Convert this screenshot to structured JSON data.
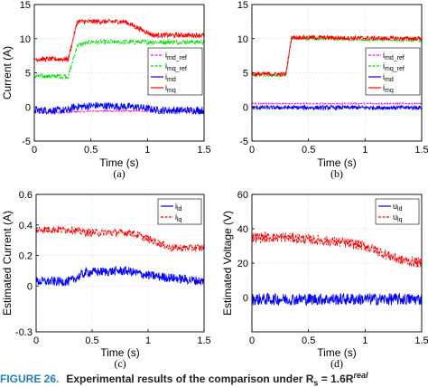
{
  "figure": {
    "caption_label": "FIGURE 26.",
    "caption_text": "Experimental results of the comparison under R",
    "caption_subscript": "s",
    "caption_suffix": " = 1.6R",
    "caption_superscript": "real"
  },
  "colors": {
    "blue": "#0000ff",
    "red": "#ff0000",
    "green": "#00dd00",
    "magenta": "#ff00ff",
    "red_dashed": "#ff0000"
  },
  "chart_data": [
    {
      "type": "line",
      "panel_label": "(a)",
      "xlabel": "Time (s)",
      "ylabel": "Current (A)",
      "xlim": [
        0,
        1.5
      ],
      "ylim": [
        -5,
        15
      ],
      "xticks": [
        "0",
        "0.5",
        "1",
        "1.5"
      ],
      "yticks": [
        "-5",
        "0",
        "5",
        "10",
        "15"
      ],
      "grid": true,
      "legend_position": "right",
      "series": [
        {
          "name": "i_md_ref",
          "name_main": "i",
          "name_sub": "md_ref",
          "style": "dashed",
          "color": "#ff00ff",
          "x": [
            0,
            0.3,
            0.5,
            1.5
          ],
          "y": [
            -0.8,
            -0.8,
            -0.6,
            -0.6
          ],
          "noise": 0.1
        },
        {
          "name": "i_mq_ref",
          "name_main": "i",
          "name_sub": "mq_ref",
          "style": "dashed",
          "color": "#00dd00",
          "x": [
            0,
            0.3,
            0.38,
            0.5,
            1.5
          ],
          "y": [
            4.5,
            4.5,
            9.0,
            9.5,
            9.5
          ],
          "noise": 0.35
        },
        {
          "name": "i_md",
          "name_main": "i",
          "name_sub": "md",
          "style": "solid",
          "color": "#0000ff",
          "x": [
            0,
            0.3,
            0.35,
            0.55,
            0.9,
            1.1,
            1.5
          ],
          "y": [
            -0.5,
            -0.5,
            0.0,
            0.2,
            0.0,
            -0.5,
            -0.5
          ],
          "noise": 0.55
        },
        {
          "name": "i_mq",
          "name_main": "i",
          "name_sub": "mq",
          "style": "solid",
          "color": "#ff0000",
          "x": [
            0,
            0.3,
            0.38,
            0.8,
            1.05,
            1.5
          ],
          "y": [
            7.0,
            7.0,
            12.5,
            12.5,
            10.5,
            10.5
          ],
          "noise": 0.35
        }
      ]
    },
    {
      "type": "line",
      "panel_label": "(b)",
      "xlabel": "Time (s)",
      "ylabel": "",
      "xlim": [
        0,
        1.5
      ],
      "ylim": [
        -5,
        15
      ],
      "xticks": [
        "0",
        "0.5",
        "1",
        "1.5"
      ],
      "yticks": [
        "-5",
        "0",
        "5",
        "10",
        "15"
      ],
      "grid": true,
      "legend_position": "right",
      "series": [
        {
          "name": "i_md_ref",
          "name_main": "i",
          "name_sub": "md_ref",
          "style": "dashed",
          "color": "#ff00ff",
          "x": [
            0,
            1.5
          ],
          "y": [
            0.5,
            0.5
          ],
          "noise": 0.08
        },
        {
          "name": "i_mq_ref",
          "name_main": "i",
          "name_sub": "mq_ref",
          "style": "dashed",
          "color": "#00dd00",
          "x": [
            0,
            0.3,
            0.35,
            1.5
          ],
          "y": [
            4.6,
            4.6,
            10.0,
            9.7
          ],
          "noise": 0.15
        },
        {
          "name": "i_md",
          "name_main": "i",
          "name_sub": "md",
          "style": "solid",
          "color": "#0000ff",
          "x": [
            0,
            1.5
          ],
          "y": [
            -0.1,
            -0.1
          ],
          "noise": 0.3
        },
        {
          "name": "i_mq",
          "name_main": "i",
          "name_sub": "mq",
          "style": "solid",
          "color": "#ff0000",
          "x": [
            0,
            0.3,
            0.35,
            1.5
          ],
          "y": [
            4.8,
            4.8,
            10.2,
            10.0
          ],
          "noise": 0.3
        }
      ]
    },
    {
      "type": "line",
      "panel_label": "(c)",
      "xlabel": "Time (s)",
      "ylabel": "Estimated Current (A)",
      "xlim": [
        0,
        1.5
      ],
      "ylim": [
        -0.3,
        0.6
      ],
      "xticks": [
        "0",
        "0.5",
        "1",
        "1.5"
      ],
      "yticks": [
        "-0.3",
        "0",
        "0.2",
        "0.4",
        "0.6"
      ],
      "ytick_values": [
        -0.3,
        0,
        0.2,
        0.4,
        0.6
      ],
      "grid": true,
      "legend_position": "top-right",
      "series": [
        {
          "name": "i_ld",
          "name_main": "i",
          "name_sub": "ld",
          "style": "solid",
          "color": "#0000ff",
          "x": [
            0,
            0.3,
            0.45,
            0.8,
            1.0,
            1.5
          ],
          "y": [
            0.03,
            0.03,
            0.09,
            0.1,
            0.07,
            0.03
          ],
          "noise": 0.03
        },
        {
          "name": "i_lq",
          "name_main": "i",
          "name_sub": "lq",
          "style": "dashed",
          "color": "#ff0000",
          "x": [
            0,
            0.3,
            0.45,
            0.85,
            1.1,
            1.2,
            1.5
          ],
          "y": [
            0.37,
            0.37,
            0.35,
            0.35,
            0.28,
            0.25,
            0.25
          ],
          "noise": 0.025
        }
      ]
    },
    {
      "type": "line",
      "panel_label": "(d)",
      "xlabel": "Time (s)",
      "ylabel": "Estimated Voltage (V)",
      "xlim": [
        0,
        1.5
      ],
      "ylim": [
        -20,
        60
      ],
      "xticks": [
        "0",
        "0.5",
        "1",
        "1.5"
      ],
      "yticks": [
        "0",
        "20",
        "40",
        "60"
      ],
      "ytick_values": [
        0,
        20,
        40,
        60
      ],
      "grid": true,
      "legend_position": "top-right",
      "series": [
        {
          "name": "u_ld",
          "name_main": "u",
          "name_sub": "ld",
          "style": "solid",
          "color": "#0000ff",
          "x": [
            0,
            1.5
          ],
          "y": [
            -1,
            -1
          ],
          "noise": 3.5
        },
        {
          "name": "u_lq",
          "name_main": "u",
          "name_sub": "lq",
          "style": "dashed",
          "color": "#ff0000",
          "x": [
            0,
            0.3,
            0.8,
            1.0,
            1.3,
            1.5
          ],
          "y": [
            35,
            35,
            32,
            30,
            22,
            20
          ],
          "noise": 3.0
        }
      ]
    }
  ]
}
